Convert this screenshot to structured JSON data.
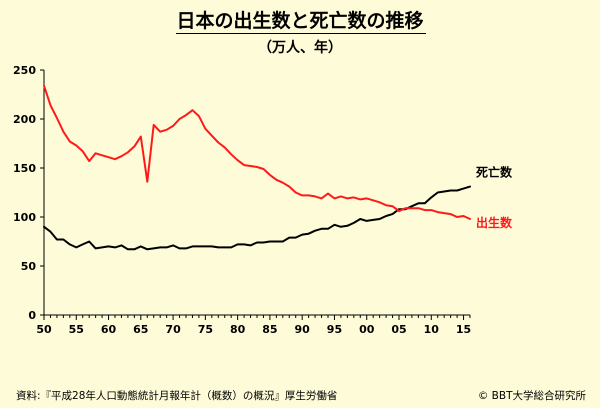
{
  "header": {
    "title": "日本の出生数と死亡数の推移",
    "subtitle": "（万人、年）"
  },
  "footer": {
    "source": "資料:『平成28年人口動態統計月報年計（概数）の概況』厚生労働省",
    "copyright": "© BBT大学総合研究所"
  },
  "colors": {
    "background": "#fdfbd8",
    "births": "#ff1a1a",
    "deaths": "#000000"
  },
  "chart_data": {
    "type": "line",
    "title": "日本の出生数と死亡数の推移",
    "subtitle": "（万人、年）",
    "xlabel": "",
    "ylabel": "",
    "xlim": [
      1950,
      2016
    ],
    "ylim": [
      0,
      250
    ],
    "yticks": [
      0,
      50,
      100,
      150,
      200,
      250
    ],
    "xtick_values": [
      1950,
      1955,
      1960,
      1965,
      1970,
      1975,
      1980,
      1985,
      1990,
      1995,
      2000,
      2005,
      2010,
      2015
    ],
    "xtick_labels": [
      "50",
      "55",
      "60",
      "65",
      "70",
      "75",
      "80",
      "85",
      "90",
      "95",
      "00",
      "05",
      "10",
      "15"
    ],
    "grid": false,
    "legend": "inline labels at right end of lines",
    "x": [
      1950,
      1951,
      1952,
      1953,
      1954,
      1955,
      1956,
      1957,
      1958,
      1959,
      1960,
      1961,
      1962,
      1963,
      1964,
      1965,
      1966,
      1967,
      1968,
      1969,
      1970,
      1971,
      1972,
      1973,
      1974,
      1975,
      1976,
      1977,
      1978,
      1979,
      1980,
      1981,
      1982,
      1983,
      1984,
      1985,
      1986,
      1987,
      1988,
      1989,
      1990,
      1991,
      1992,
      1993,
      1994,
      1995,
      1996,
      1997,
      1998,
      1999,
      2000,
      2001,
      2002,
      2003,
      2004,
      2005,
      2006,
      2007,
      2008,
      2009,
      2010,
      2011,
      2012,
      2013,
      2014,
      2015,
      2016
    ],
    "series": [
      {
        "name": "死亡数",
        "color": "#000000",
        "values": [
          90,
          85,
          77,
          77,
          72,
          69,
          72,
          75,
          68,
          69,
          70,
          69,
          71,
          67,
          67,
          70,
          67,
          68,
          69,
          69,
          71,
          68,
          68,
          70,
          70,
          70,
          70,
          69,
          69,
          69,
          72,
          72,
          71,
          74,
          74,
          75,
          75,
          75,
          79,
          79,
          82,
          83,
          86,
          88,
          88,
          92,
          90,
          91,
          94,
          98,
          96,
          97,
          98,
          101,
          103,
          108,
          108,
          111,
          114,
          114,
          120,
          125,
          126,
          127,
          127,
          129,
          131
        ]
      },
      {
        "name": "出生数",
        "color": "#ff1a1a",
        "values": [
          234,
          214,
          201,
          187,
          177,
          173,
          167,
          157,
          165,
          163,
          161,
          159,
          162,
          166,
          172,
          182,
          136,
          194,
          187,
          189,
          193,
          200,
          204,
          209,
          203,
          190,
          183,
          176,
          171,
          164,
          158,
          153,
          152,
          151,
          149,
          143,
          138,
          135,
          131,
          125,
          122,
          122,
          121,
          119,
          124,
          119,
          121,
          119,
          120,
          118,
          119,
          117,
          115,
          112,
          111,
          106,
          109,
          109,
          109,
          107,
          107,
          105,
          104,
          103,
          100,
          101,
          98
        ]
      }
    ]
  }
}
